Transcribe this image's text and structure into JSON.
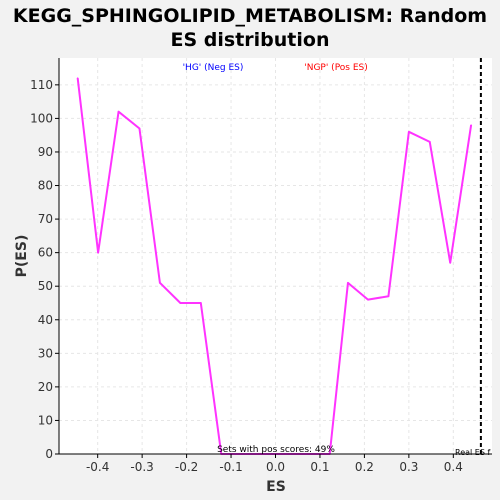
{
  "chart_data": {
    "type": "line",
    "title_lines": [
      "KEGG_SPHINGOLIPID_METABOLISM: Random",
      "ES distribution"
    ],
    "xlabel": "ES",
    "ylabel": "P(ES)",
    "xlim": [
      -0.487,
      0.487
    ],
    "ylim": [
      0,
      118
    ],
    "x_ticks": [
      -0.4,
      -0.3,
      -0.2,
      -0.1,
      0.0,
      0.1,
      0.2,
      0.3,
      0.4
    ],
    "x_tick_labels": [
      "-0.4",
      "-0.3",
      "-0.2",
      "-0.1",
      "0.0",
      "0.1",
      "0.2",
      "0.3",
      "0.4"
    ],
    "y_ticks": [
      0,
      10,
      20,
      30,
      40,
      50,
      60,
      70,
      80,
      90,
      100,
      110
    ],
    "y_tick_labels": [
      "0",
      "10",
      "20",
      "30",
      "40",
      "50",
      "60",
      "70",
      "80",
      "90",
      "100",
      "110"
    ],
    "grid": true,
    "series": [
      {
        "color": "#ff33ff",
        "x": [
          -0.445,
          -0.399,
          -0.353,
          -0.306,
          -0.26,
          -0.214,
          -0.168,
          -0.122,
          0.122,
          0.163,
          0.208,
          0.254,
          0.3,
          0.347,
          0.393,
          0.44
        ],
        "y": [
          112,
          60,
          102,
          97,
          51,
          45,
          45,
          0,
          0,
          51,
          46,
          47,
          96,
          93,
          57,
          98
        ]
      }
    ],
    "real_es": 0.462,
    "annotations": {
      "neg_label": "'HG' (Neg ES)",
      "pos_label": "'NGP' (Pos ES)",
      "pos_scores": "Sets with pos scores: 49%",
      "real_es_label": "Real ES f"
    },
    "colors": {
      "neg_label": "#0000ff",
      "pos_label": "#ff0000",
      "plot_bg": "#ffffff",
      "grid": "#e6e6e6"
    }
  }
}
